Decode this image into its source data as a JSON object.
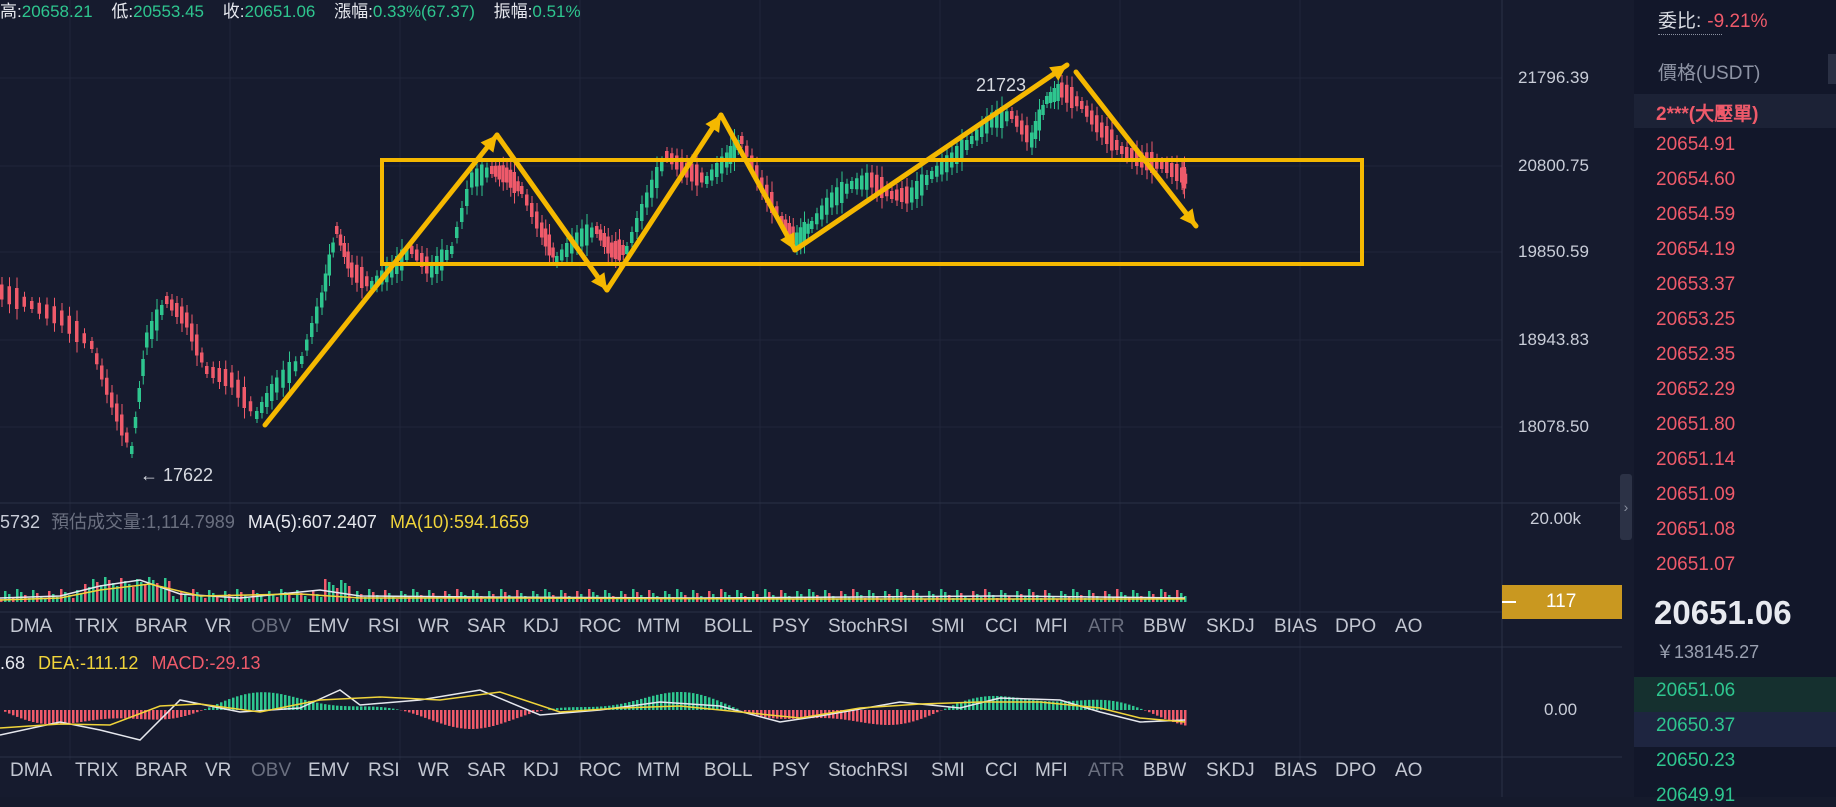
{
  "header": {
    "high_label": "高:",
    "high_value": "20658.21",
    "low_label": "低:",
    "low_value": "20553.45",
    "close_label": "收:",
    "close_value": "20651.06",
    "change_label": "漲幅:",
    "change_value": "0.33%(67.37)",
    "amplitude_label": "振幅:",
    "amplitude_value": "0.51%"
  },
  "price_axis": {
    "ticks": [
      "21796.39",
      "20800.75",
      "19850.59",
      "18943.83",
      "18078.50"
    ],
    "volume_tick": "20.00k",
    "macd_tick": "0.00",
    "volume_badge": "117"
  },
  "annotations": {
    "high_marker": "21723",
    "low_marker": "← 17622"
  },
  "volume_legend": {
    "vol": "5732",
    "est_label": "預估成交量:",
    "est_value": "1,114.7989",
    "ma5": "MA(5):607.2407",
    "ma10": "MA(10):594.1659"
  },
  "indicators": [
    "DMA",
    "TRIX",
    "BRAR",
    "VR",
    "OBV",
    "EMV",
    "RSI",
    "WR",
    "SAR",
    "KDJ",
    "ROC",
    "MTM",
    "BOLL",
    "PSY",
    "StochRSI",
    "SMI",
    "CCI",
    "MFI",
    "ATR",
    "BBW",
    "SKDJ",
    "BIAS",
    "DPO",
    "AO"
  ],
  "macd_legend": {
    "dif": ".68",
    "dea": "DEA:-111.12",
    "macd": "MACD:-29.13"
  },
  "orderbook": {
    "ratio_label": "委比:",
    "ratio_value": "-9.21%",
    "price_header": "價格(USDT)",
    "big_order": "2***(大壓單)",
    "asks": [
      "20654.91",
      "20654.60",
      "20654.59",
      "20654.19",
      "20653.37",
      "20653.25",
      "20652.35",
      "20652.29",
      "20651.80",
      "20651.14",
      "20651.09",
      "20651.08",
      "20651.07"
    ],
    "last_price": "20651.06",
    "cny_value": "￥138145.27",
    "bids": [
      "20651.06",
      "20650.37",
      "20650.23",
      "20649.91"
    ]
  },
  "colors": {
    "background": "#161b2e",
    "up": "#2ec68f",
    "down": "#ef5a6a",
    "drawing": "#f5b800",
    "badge": "#c99820"
  }
}
